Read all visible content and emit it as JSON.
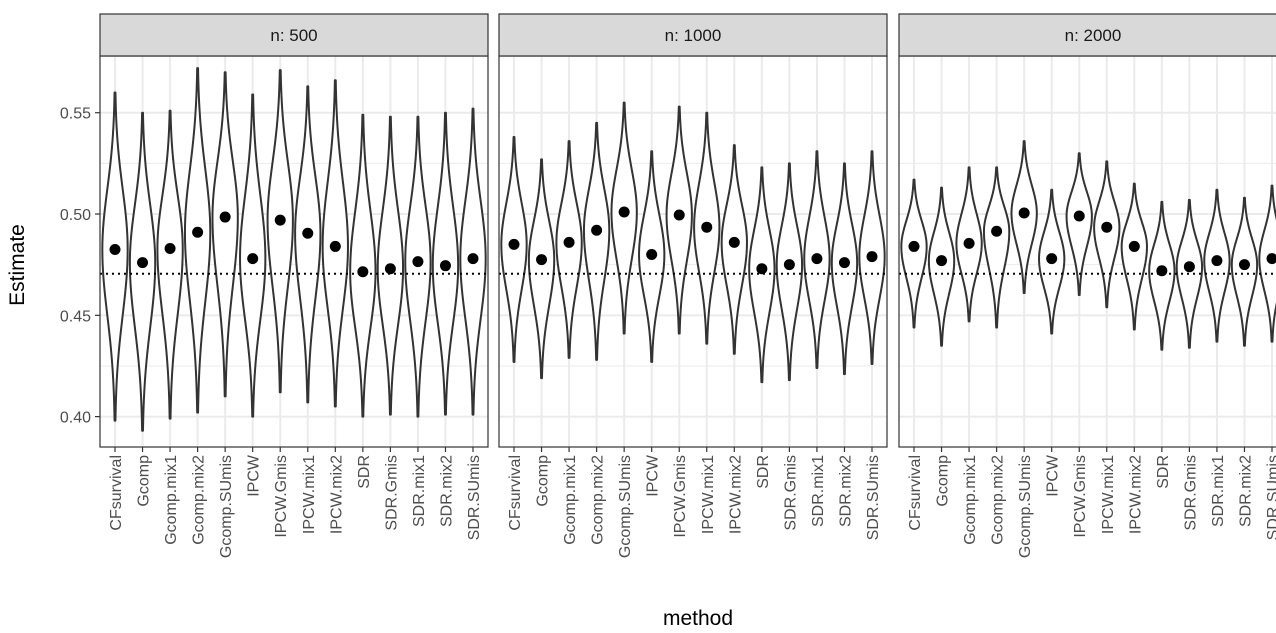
{
  "chart_data": {
    "type": "violin",
    "xlabel": "method",
    "ylabel": "Estimate",
    "ylim": [
      0.385,
      0.578
    ],
    "yticks": [
      "0.40",
      "0.45",
      "0.50",
      "0.55"
    ],
    "reference_line": 0.4705,
    "categories": [
      "CFsurvival",
      "Gcomp",
      "Gcomp.mix1",
      "Gcomp.mix2",
      "Gcomp.SUmis",
      "IPCW",
      "IPCW.Gmis",
      "IPCW.mix1",
      "IPCW.mix2",
      "SDR",
      "SDR.Gmis",
      "SDR.mix1",
      "SDR.mix2",
      "SDR.SUmis"
    ],
    "facets": [
      {
        "label": "n: 500",
        "points": [
          0.4825,
          0.476,
          0.483,
          0.491,
          0.4985,
          0.478,
          0.497,
          0.4905,
          0.484,
          0.4715,
          0.473,
          0.4765,
          0.4745,
          0.478
        ],
        "min": [
          0.398,
          0.393,
          0.399,
          0.402,
          0.41,
          0.4,
          0.412,
          0.407,
          0.405,
          0.4,
          0.401,
          0.4,
          0.401,
          0.401
        ],
        "max": [
          0.56,
          0.55,
          0.551,
          0.572,
          0.57,
          0.559,
          0.571,
          0.563,
          0.566,
          0.549,
          0.548,
          0.548,
          0.55,
          0.552
        ]
      },
      {
        "label": "n: 1000",
        "points": [
          0.485,
          0.4775,
          0.486,
          0.492,
          0.501,
          0.48,
          0.4995,
          0.4935,
          0.486,
          0.473,
          0.475,
          0.478,
          0.476,
          0.479
        ],
        "min": [
          0.427,
          0.419,
          0.429,
          0.428,
          0.441,
          0.427,
          0.441,
          0.436,
          0.431,
          0.417,
          0.418,
          0.424,
          0.421,
          0.426
        ],
        "max": [
          0.538,
          0.527,
          0.536,
          0.545,
          0.555,
          0.531,
          0.553,
          0.55,
          0.534,
          0.523,
          0.525,
          0.531,
          0.525,
          0.531
        ]
      },
      {
        "label": "n: 2000",
        "points": [
          0.484,
          0.477,
          0.4855,
          0.4915,
          0.5005,
          0.478,
          0.499,
          0.4935,
          0.484,
          0.472,
          0.474,
          0.477,
          0.475,
          0.478
        ],
        "min": [
          0.444,
          0.435,
          0.447,
          0.444,
          0.461,
          0.441,
          0.46,
          0.454,
          0.443,
          0.433,
          0.434,
          0.437,
          0.435,
          0.437
        ],
        "max": [
          0.517,
          0.513,
          0.523,
          0.523,
          0.536,
          0.512,
          0.53,
          0.526,
          0.515,
          0.506,
          0.507,
          0.512,
          0.508,
          0.514
        ]
      }
    ],
    "colors": {
      "strip_bg": "#d9d9d9",
      "grid": "#ebebeb",
      "violin": "#333333",
      "point": "#000000",
      "panel_border": "#333333"
    }
  }
}
